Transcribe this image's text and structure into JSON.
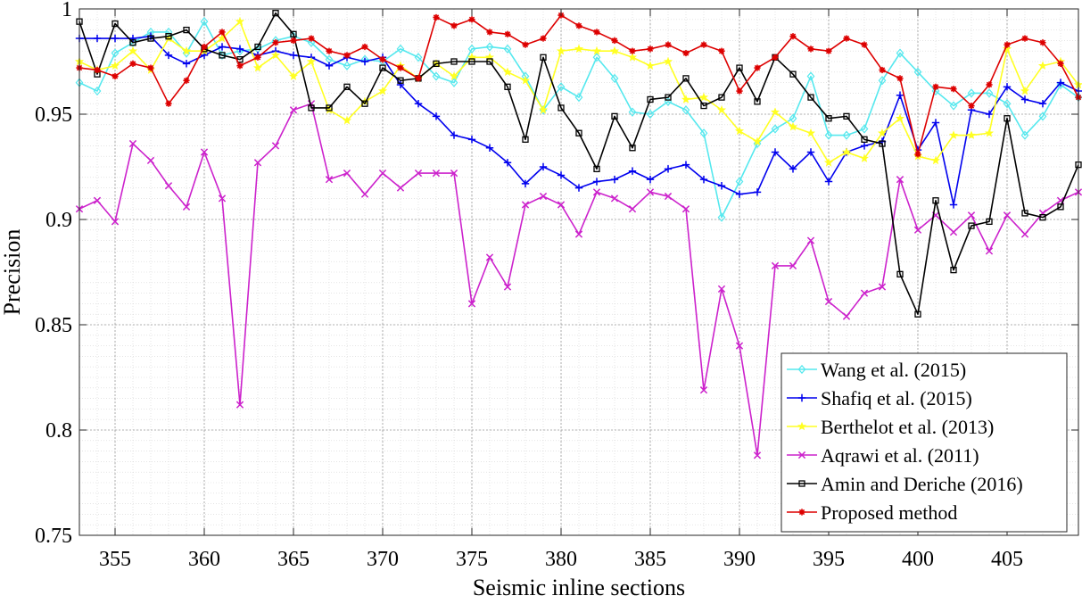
{
  "chart_data": {
    "type": "line",
    "title": "",
    "xlabel": "Seismic inline sections",
    "ylabel": "Precision",
    "xlim": [
      353,
      409
    ],
    "ylim": [
      0.75,
      1.0
    ],
    "x_ticks": [
      355,
      360,
      365,
      370,
      375,
      380,
      385,
      390,
      395,
      400,
      405
    ],
    "x_tick_labels": [
      "355",
      "360",
      "365",
      "370",
      "375",
      "380",
      "385",
      "390",
      "395",
      "400",
      "405"
    ],
    "y_ticks": [
      0.75,
      0.8,
      0.85,
      0.9,
      0.95,
      1.0
    ],
    "y_tick_labels": [
      "0.75",
      "0.8",
      "0.85",
      "0.9",
      "0.95",
      "1"
    ],
    "grid": "major and minor dotted",
    "legend_position": "bottom-right",
    "x": [
      353,
      354,
      355,
      356,
      357,
      358,
      359,
      360,
      361,
      362,
      363,
      364,
      365,
      366,
      367,
      368,
      369,
      370,
      371,
      372,
      373,
      374,
      375,
      376,
      377,
      378,
      379,
      380,
      381,
      382,
      383,
      384,
      385,
      386,
      387,
      388,
      389,
      390,
      391,
      392,
      393,
      394,
      395,
      396,
      397,
      398,
      399,
      400,
      401,
      402,
      403,
      404,
      405,
      406,
      407,
      408,
      409
    ],
    "series": [
      {
        "name": "Wang et al. (2015)",
        "color": "#55e8ee",
        "marker": "diamond",
        "values": [
          0.965,
          0.961,
          0.979,
          0.984,
          0.989,
          0.989,
          0.979,
          0.994,
          0.978,
          0.98,
          0.981,
          0.985,
          0.987,
          0.984,
          0.976,
          0.973,
          0.976,
          0.975,
          0.981,
          0.977,
          0.968,
          0.965,
          0.981,
          0.982,
          0.981,
          0.968,
          0.952,
          0.963,
          0.958,
          0.977,
          0.967,
          0.951,
          0.95,
          0.956,
          0.952,
          0.941,
          0.901,
          0.918,
          0.936,
          0.943,
          0.948,
          0.968,
          0.94,
          0.94,
          0.943,
          0.966,
          0.979,
          0.97,
          0.961,
          0.954,
          0.96,
          0.96,
          0.955,
          0.94,
          0.949,
          0.964,
          0.958
        ]
      },
      {
        "name": "Shafiq et al. (2015)",
        "color": "#0000ee",
        "marker": "plus",
        "values": [
          0.986,
          0.986,
          0.986,
          0.986,
          0.987,
          0.978,
          0.974,
          0.978,
          0.982,
          0.981,
          0.978,
          0.98,
          0.978,
          0.977,
          0.973,
          0.977,
          0.975,
          0.977,
          0.964,
          0.955,
          0.949,
          0.94,
          0.938,
          0.934,
          0.927,
          0.917,
          0.925,
          0.921,
          0.915,
          0.918,
          0.919,
          0.923,
          0.919,
          0.924,
          0.926,
          0.919,
          0.916,
          0.912,
          0.913,
          0.932,
          0.924,
          0.932,
          0.918,
          0.932,
          0.935,
          0.937,
          0.959,
          0.933,
          0.946,
          0.907,
          0.952,
          0.95,
          0.963,
          0.957,
          0.955,
          0.965,
          0.961
        ]
      },
      {
        "name": "Berthelot et al. (2013)",
        "color": "#ffff22",
        "marker": "star",
        "values": [
          0.975,
          0.971,
          0.973,
          0.98,
          0.971,
          0.986,
          0.98,
          0.98,
          0.986,
          0.994,
          0.972,
          0.978,
          0.968,
          0.975,
          0.952,
          0.947,
          0.956,
          0.961,
          0.973,
          0.967,
          0.974,
          0.968,
          0.977,
          0.977,
          0.97,
          0.966,
          0.952,
          0.98,
          0.981,
          0.98,
          0.98,
          0.977,
          0.973,
          0.975,
          0.957,
          0.958,
          0.952,
          0.942,
          0.937,
          0.951,
          0.944,
          0.941,
          0.927,
          0.932,
          0.929,
          0.941,
          0.948,
          0.93,
          0.928,
          0.94,
          0.94,
          0.941,
          0.981,
          0.961,
          0.973,
          0.975,
          0.964
        ]
      },
      {
        "name": "Aqrawi et al. (2011)",
        "color": "#cc22cc",
        "marker": "cross",
        "values": [
          0.905,
          0.909,
          0.899,
          0.936,
          0.928,
          0.916,
          0.906,
          0.932,
          0.91,
          0.812,
          0.927,
          0.935,
          0.952,
          0.955,
          0.919,
          0.922,
          0.912,
          0.922,
          0.915,
          0.922,
          0.922,
          0.922,
          0.86,
          0.882,
          0.868,
          0.907,
          0.911,
          0.907,
          0.893,
          0.913,
          0.91,
          0.905,
          0.913,
          0.911,
          0.905,
          0.819,
          0.867,
          0.84,
          0.788,
          0.878,
          0.878,
          0.89,
          0.861,
          0.854,
          0.865,
          0.868,
          0.919,
          0.895,
          0.902,
          0.894,
          0.902,
          0.885,
          0.902,
          0.893,
          0.903,
          0.909,
          0.913
        ]
      },
      {
        "name": "Amin and Deriche (2016)",
        "color": "#000000",
        "marker": "square",
        "values": [
          0.994,
          0.969,
          0.993,
          0.984,
          0.986,
          0.987,
          0.99,
          0.981,
          0.978,
          0.976,
          0.982,
          0.998,
          0.988,
          0.953,
          0.953,
          0.963,
          0.955,
          0.972,
          0.966,
          0.967,
          0.974,
          0.975,
          0.975,
          0.975,
          0.963,
          0.938,
          0.977,
          0.953,
          0.941,
          0.924,
          0.949,
          0.934,
          0.957,
          0.958,
          0.967,
          0.954,
          0.958,
          0.972,
          0.956,
          0.977,
          0.969,
          0.958,
          0.948,
          0.949,
          0.938,
          0.936,
          0.874,
          0.855,
          0.909,
          0.876,
          0.897,
          0.899,
          0.948,
          0.903,
          0.901,
          0.906,
          0.926
        ]
      },
      {
        "name": "Proposed method",
        "color": "#dd0000",
        "marker": "asterisk",
        "values": [
          0.972,
          0.971,
          0.968,
          0.974,
          0.972,
          0.955,
          0.966,
          0.982,
          0.989,
          0.973,
          0.977,
          0.984,
          0.985,
          0.986,
          0.98,
          0.978,
          0.982,
          0.976,
          0.972,
          0.967,
          0.996,
          0.992,
          0.995,
          0.989,
          0.988,
          0.983,
          0.986,
          0.997,
          0.992,
          0.989,
          0.985,
          0.98,
          0.981,
          0.983,
          0.979,
          0.983,
          0.98,
          0.961,
          0.972,
          0.977,
          0.987,
          0.981,
          0.98,
          0.986,
          0.983,
          0.971,
          0.967,
          0.931,
          0.963,
          0.962,
          0.954,
          0.964,
          0.983,
          0.986,
          0.984,
          0.974,
          0.958
        ]
      }
    ]
  }
}
